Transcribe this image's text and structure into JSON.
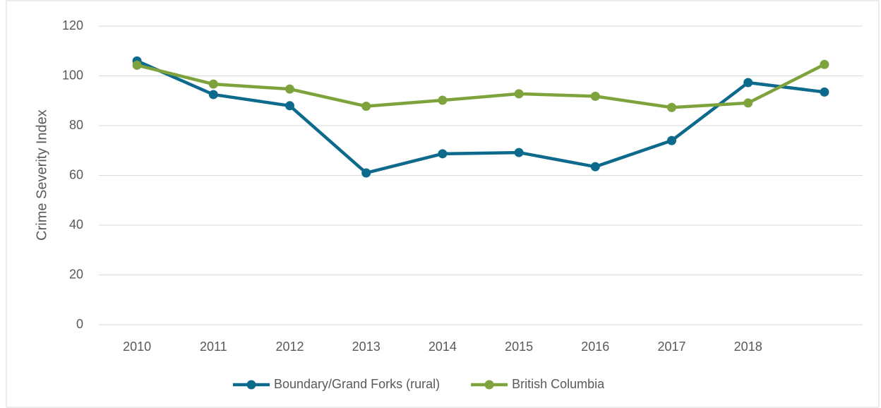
{
  "chart_data": {
    "type": "line",
    "y_label": "Crime Severity Index",
    "categories": [
      "2010",
      "2011",
      "2012",
      "2013",
      "2014",
      "2015",
      "2016",
      "2017",
      "2018",
      null
    ],
    "series": [
      {
        "name": "Boundary/Grand Forks (rural)",
        "color": "#0e6a8c",
        "values": [
          106,
          92.5,
          88,
          61,
          68.7,
          69.2,
          63.5,
          74,
          97.3,
          93.5
        ]
      },
      {
        "name": "British Columbia",
        "color": "#7ea33c",
        "values": [
          104.3,
          96.7,
          94.7,
          87.8,
          90.2,
          92.8,
          91.8,
          87.3,
          89.1,
          104.6
        ]
      }
    ],
    "ylim": [
      0,
      120
    ],
    "yticks": [
      0,
      20,
      40,
      60,
      80,
      100,
      120
    ],
    "grid": true,
    "legend": "bottom"
  }
}
